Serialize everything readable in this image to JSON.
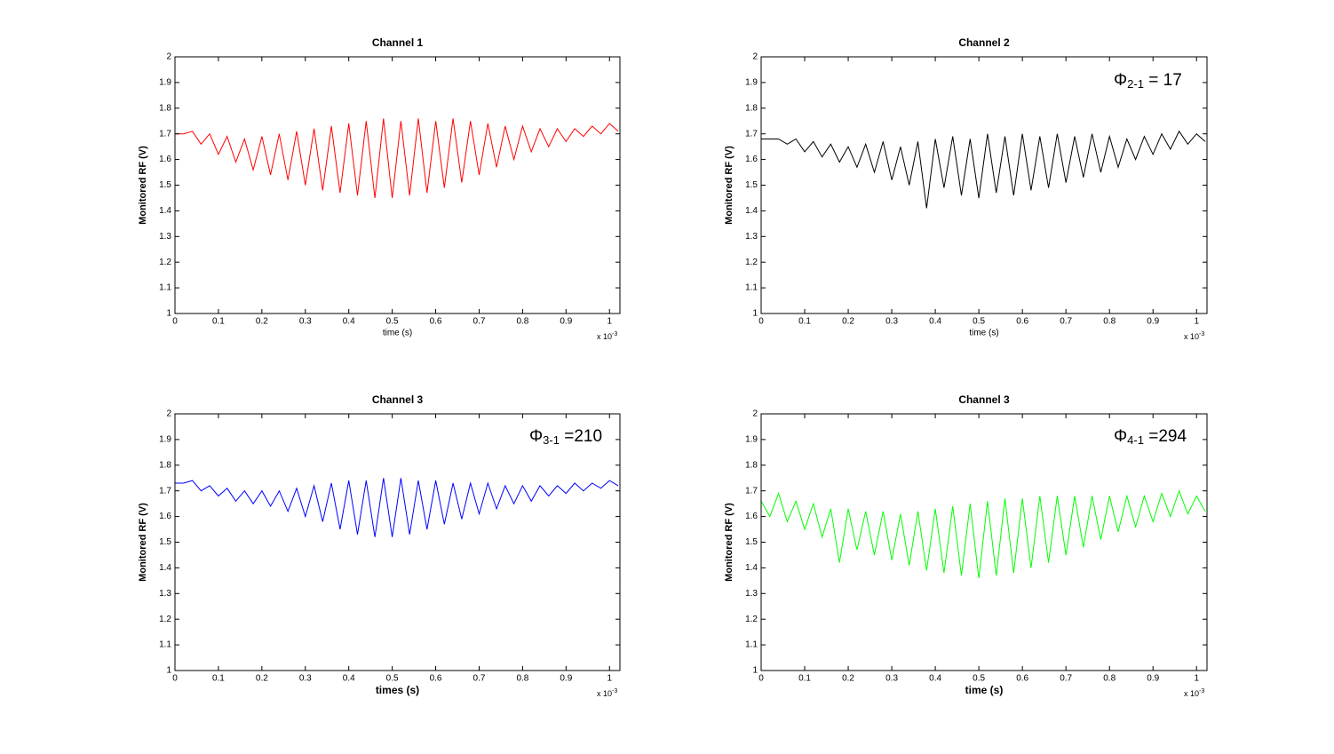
{
  "chart_data": [
    {
      "type": "line",
      "title": "Channel 1",
      "ylabel": "Monitored RF  (V)",
      "xlabel": "time (s)",
      "x_multiplier": {
        "text": "x 10",
        "exponent": "-3"
      },
      "xlim": [
        0,
        1.024
      ],
      "ylim": [
        1,
        2
      ],
      "xticks": [
        0,
        0.1,
        0.2,
        0.3,
        0.4,
        0.5,
        0.6,
        0.7,
        0.8,
        0.9,
        1
      ],
      "yticks": [
        1,
        1.1,
        1.2,
        1.3,
        1.4,
        1.5,
        1.6,
        1.7,
        1.8,
        1.9,
        2
      ],
      "color": "#ff0000",
      "x": [
        0,
        0.02,
        0.04,
        0.06,
        0.08,
        0.1,
        0.12,
        0.14,
        0.16,
        0.18,
        0.2,
        0.22,
        0.24,
        0.26,
        0.28,
        0.3,
        0.32,
        0.34,
        0.36,
        0.38,
        0.4,
        0.42,
        0.44,
        0.46,
        0.48,
        0.5,
        0.52,
        0.54,
        0.56,
        0.58,
        0.6,
        0.62,
        0.64,
        0.66,
        0.68,
        0.7,
        0.72,
        0.74,
        0.76,
        0.78,
        0.8,
        0.82,
        0.84,
        0.86,
        0.88,
        0.9,
        0.92,
        0.94,
        0.96,
        0.98,
        1,
        1.02
      ],
      "values": [
        1.7,
        1.7,
        1.71,
        1.66,
        1.7,
        1.62,
        1.69,
        1.59,
        1.68,
        1.56,
        1.69,
        1.54,
        1.7,
        1.52,
        1.71,
        1.5,
        1.72,
        1.48,
        1.73,
        1.47,
        1.74,
        1.46,
        1.75,
        1.45,
        1.76,
        1.45,
        1.75,
        1.46,
        1.76,
        1.47,
        1.75,
        1.49,
        1.76,
        1.51,
        1.75,
        1.54,
        1.74,
        1.57,
        1.73,
        1.6,
        1.73,
        1.63,
        1.72,
        1.65,
        1.72,
        1.67,
        1.72,
        1.69,
        1.73,
        1.7,
        1.74,
        1.71
      ]
    },
    {
      "type": "line",
      "title": "Channel 2",
      "ylabel": "Monitored RF  (V)",
      "xlabel": "time (s)",
      "x_multiplier": {
        "text": "x 10",
        "exponent": "-3"
      },
      "annotation": {
        "symbol": "Φ",
        "subscript": "2-1",
        "text": " = 17"
      },
      "xlim": [
        0,
        1.024
      ],
      "ylim": [
        1,
        2
      ],
      "xticks": [
        0,
        0.1,
        0.2,
        0.3,
        0.4,
        0.5,
        0.6,
        0.7,
        0.8,
        0.9,
        1
      ],
      "yticks": [
        1,
        1.1,
        1.2,
        1.3,
        1.4,
        1.5,
        1.6,
        1.7,
        1.8,
        1.9,
        2
      ],
      "color": "#000000",
      "x": [
        0,
        0.02,
        0.04,
        0.06,
        0.08,
        0.1,
        0.12,
        0.14,
        0.16,
        0.18,
        0.2,
        0.22,
        0.24,
        0.26,
        0.28,
        0.3,
        0.32,
        0.34,
        0.36,
        0.38,
        0.4,
        0.42,
        0.44,
        0.46,
        0.48,
        0.5,
        0.52,
        0.54,
        0.56,
        0.58,
        0.6,
        0.62,
        0.64,
        0.66,
        0.68,
        0.7,
        0.72,
        0.74,
        0.76,
        0.78,
        0.8,
        0.82,
        0.84,
        0.86,
        0.88,
        0.9,
        0.92,
        0.94,
        0.96,
        0.98,
        1,
        1.02
      ],
      "values": [
        1.68,
        1.68,
        1.68,
        1.66,
        1.68,
        1.63,
        1.67,
        1.61,
        1.66,
        1.59,
        1.65,
        1.57,
        1.66,
        1.55,
        1.67,
        1.52,
        1.65,
        1.5,
        1.67,
        1.41,
        1.68,
        1.49,
        1.69,
        1.46,
        1.68,
        1.45,
        1.7,
        1.47,
        1.69,
        1.46,
        1.7,
        1.48,
        1.69,
        1.49,
        1.7,
        1.51,
        1.69,
        1.53,
        1.7,
        1.55,
        1.69,
        1.57,
        1.68,
        1.6,
        1.69,
        1.62,
        1.7,
        1.64,
        1.71,
        1.66,
        1.7,
        1.67
      ]
    },
    {
      "type": "line",
      "title": "Channel 3",
      "ylabel": "Monitored RF  (V)",
      "xlabel": "times (s)",
      "x_multiplier": {
        "text": "x 10",
        "exponent": "-3"
      },
      "annotation": {
        "symbol": "Φ",
        "subscript": "3-1",
        "text": " =210"
      },
      "xlim": [
        0,
        1.024
      ],
      "ylim": [
        1,
        2
      ],
      "xticks": [
        0,
        0.1,
        0.2,
        0.3,
        0.4,
        0.5,
        0.6,
        0.7,
        0.8,
        0.9,
        1
      ],
      "yticks": [
        1,
        1.1,
        1.2,
        1.3,
        1.4,
        1.5,
        1.6,
        1.7,
        1.8,
        1.9,
        2
      ],
      "color": "#0000ff",
      "x": [
        0,
        0.02,
        0.04,
        0.06,
        0.08,
        0.1,
        0.12,
        0.14,
        0.16,
        0.18,
        0.2,
        0.22,
        0.24,
        0.26,
        0.28,
        0.3,
        0.32,
        0.34,
        0.36,
        0.38,
        0.4,
        0.42,
        0.44,
        0.46,
        0.48,
        0.5,
        0.52,
        0.54,
        0.56,
        0.58,
        0.6,
        0.62,
        0.64,
        0.66,
        0.68,
        0.7,
        0.72,
        0.74,
        0.76,
        0.78,
        0.8,
        0.82,
        0.84,
        0.86,
        0.88,
        0.9,
        0.92,
        0.94,
        0.96,
        0.98,
        1,
        1.02
      ],
      "values": [
        1.73,
        1.73,
        1.74,
        1.7,
        1.72,
        1.68,
        1.71,
        1.66,
        1.7,
        1.65,
        1.7,
        1.64,
        1.7,
        1.62,
        1.71,
        1.6,
        1.72,
        1.58,
        1.73,
        1.55,
        1.74,
        1.53,
        1.74,
        1.52,
        1.75,
        1.52,
        1.75,
        1.53,
        1.74,
        1.55,
        1.74,
        1.57,
        1.73,
        1.59,
        1.73,
        1.61,
        1.73,
        1.63,
        1.72,
        1.65,
        1.72,
        1.66,
        1.72,
        1.68,
        1.72,
        1.69,
        1.73,
        1.7,
        1.73,
        1.71,
        1.74,
        1.72
      ]
    },
    {
      "type": "line",
      "title": "Channel 3",
      "ylabel": "Monitored RF  (V)",
      "xlabel": "time (s)",
      "x_multiplier": {
        "text": "x 10",
        "exponent": "-3"
      },
      "annotation": {
        "symbol": "Φ",
        "subscript": "4-1",
        "text": " =294"
      },
      "xlim": [
        0,
        1.024
      ],
      "ylim": [
        1,
        2
      ],
      "xticks": [
        0,
        0.1,
        0.2,
        0.3,
        0.4,
        0.5,
        0.6,
        0.7,
        0.8,
        0.9,
        1
      ],
      "yticks": [
        1,
        1.1,
        1.2,
        1.3,
        1.4,
        1.5,
        1.6,
        1.7,
        1.8,
        1.9,
        2
      ],
      "color": "#00ff00",
      "x": [
        0,
        0.02,
        0.04,
        0.06,
        0.08,
        0.1,
        0.12,
        0.14,
        0.16,
        0.18,
        0.2,
        0.22,
        0.24,
        0.26,
        0.28,
        0.3,
        0.32,
        0.34,
        0.36,
        0.38,
        0.4,
        0.42,
        0.44,
        0.46,
        0.48,
        0.5,
        0.52,
        0.54,
        0.56,
        0.58,
        0.6,
        0.62,
        0.64,
        0.66,
        0.68,
        0.7,
        0.72,
        0.74,
        0.76,
        0.78,
        0.8,
        0.82,
        0.84,
        0.86,
        0.88,
        0.9,
        0.92,
        0.94,
        0.96,
        0.98,
        1,
        1.02
      ],
      "values": [
        1.66,
        1.6,
        1.69,
        1.58,
        1.66,
        1.55,
        1.65,
        1.52,
        1.63,
        1.42,
        1.63,
        1.47,
        1.62,
        1.45,
        1.62,
        1.43,
        1.61,
        1.41,
        1.62,
        1.39,
        1.63,
        1.38,
        1.64,
        1.37,
        1.65,
        1.36,
        1.66,
        1.37,
        1.67,
        1.38,
        1.67,
        1.4,
        1.68,
        1.42,
        1.68,
        1.45,
        1.68,
        1.48,
        1.68,
        1.51,
        1.68,
        1.54,
        1.68,
        1.56,
        1.68,
        1.58,
        1.69,
        1.6,
        1.7,
        1.61,
        1.68,
        1.62
      ]
    }
  ]
}
